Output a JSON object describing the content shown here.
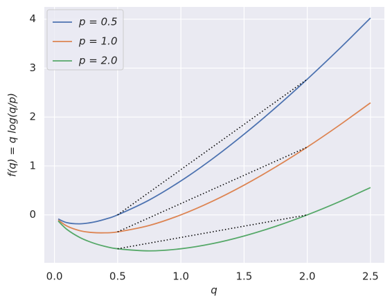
{
  "chart_data": {
    "type": "line",
    "xlabel": "q",
    "ylabel": "f(q) = q log(q/p)",
    "x": [
      0.03,
      0.1,
      0.2,
      0.3,
      0.4,
      0.5,
      0.75,
      1.0,
      1.25,
      1.5,
      1.75,
      2.0,
      2.25,
      2.5
    ],
    "series": [
      {
        "name": "p = 0.5",
        "color": "#4c72b0",
        "values": [
          -0.084,
          -0.161,
          -0.183,
          -0.153,
          -0.089,
          0,
          0.304,
          0.693,
          1.145,
          1.648,
          2.192,
          2.773,
          3.384,
          4.024
        ]
      },
      {
        "name": "p = 1.0",
        "color": "#dd8452",
        "values": [
          -0.105,
          -0.23,
          -0.322,
          -0.361,
          -0.367,
          -0.347,
          -0.216,
          0,
          0.279,
          0.608,
          0.979,
          1.386,
          1.825,
          2.291
        ]
      },
      {
        "name": "p = 2.0",
        "color": "#55a868",
        "values": [
          -0.126,
          -0.3,
          -0.461,
          -0.569,
          -0.644,
          -0.693,
          -0.736,
          -0.693,
          -0.588,
          -0.432,
          -0.234,
          0,
          0.265,
          0.558
        ]
      }
    ],
    "chords": [
      {
        "x": [
          0.5,
          2.0
        ],
        "values": [
          0,
          2.773
        ]
      },
      {
        "x": [
          0.5,
          2.0
        ],
        "values": [
          -0.347,
          1.386
        ]
      },
      {
        "x": [
          0.5,
          2.0
        ],
        "values": [
          -0.693,
          0
        ]
      }
    ],
    "chord_color": "#000000",
    "xlim": [
      -0.08,
      2.61
    ],
    "ylim": [
      -0.98,
      4.25
    ],
    "xticks": [
      {
        "value": 0,
        "label": "0.0"
      },
      0.5,
      {
        "value": 1,
        "label": "1.0"
      },
      1.5,
      {
        "value": 2,
        "label": "2.0"
      },
      2.5
    ],
    "yticks": [
      0,
      1,
      2,
      3,
      4
    ],
    "grid": true,
    "legend": "upper-left"
  }
}
